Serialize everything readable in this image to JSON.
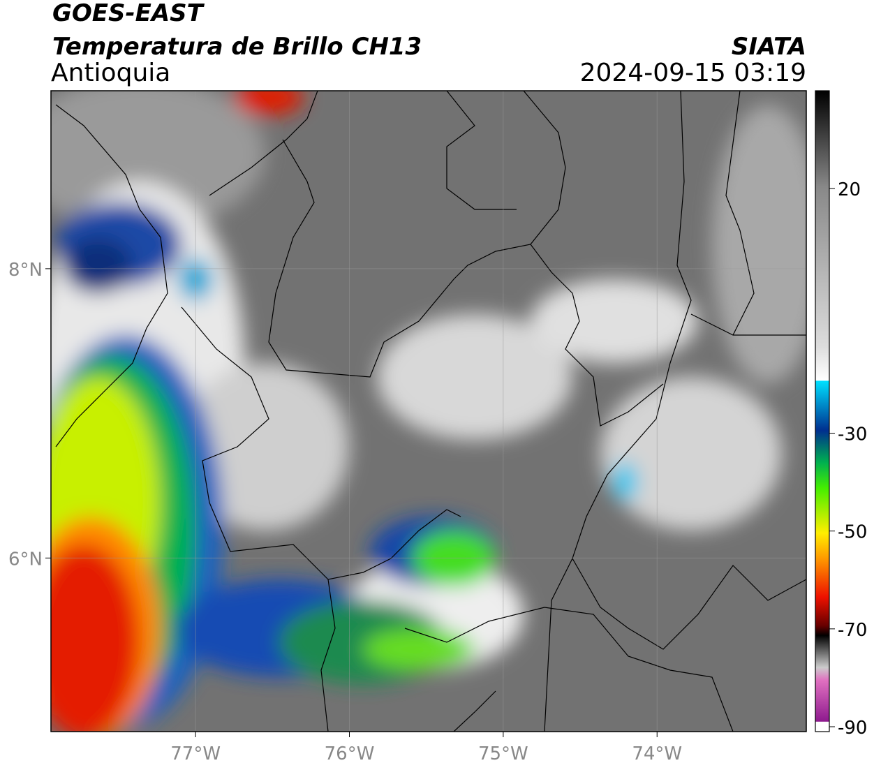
{
  "header": {
    "satellite": "GOES-EAST",
    "title": "Temperatura de Brillo CH13",
    "region": "Antioquia",
    "source": "SIATA",
    "datetime": "2024-09-15 03:19"
  },
  "map": {
    "lonlim": [
      -77.94,
      -73.03
    ],
    "latlim": [
      4.8,
      9.23
    ],
    "lonticks": [
      {
        "value": -77,
        "label": "77°W"
      },
      {
        "value": -76,
        "label": "76°W"
      },
      {
        "value": -75,
        "label": "75°W"
      },
      {
        "value": -74,
        "label": "74°W"
      }
    ],
    "latticks": [
      {
        "value": 8,
        "label": "8°N"
      },
      {
        "value": 6,
        "label": "6°N"
      }
    ],
    "grid": true
  },
  "colorbar": {
    "lim": [
      -91,
      40
    ],
    "ticks": [
      20,
      -30,
      -50,
      -70,
      -90
    ]
  }
}
